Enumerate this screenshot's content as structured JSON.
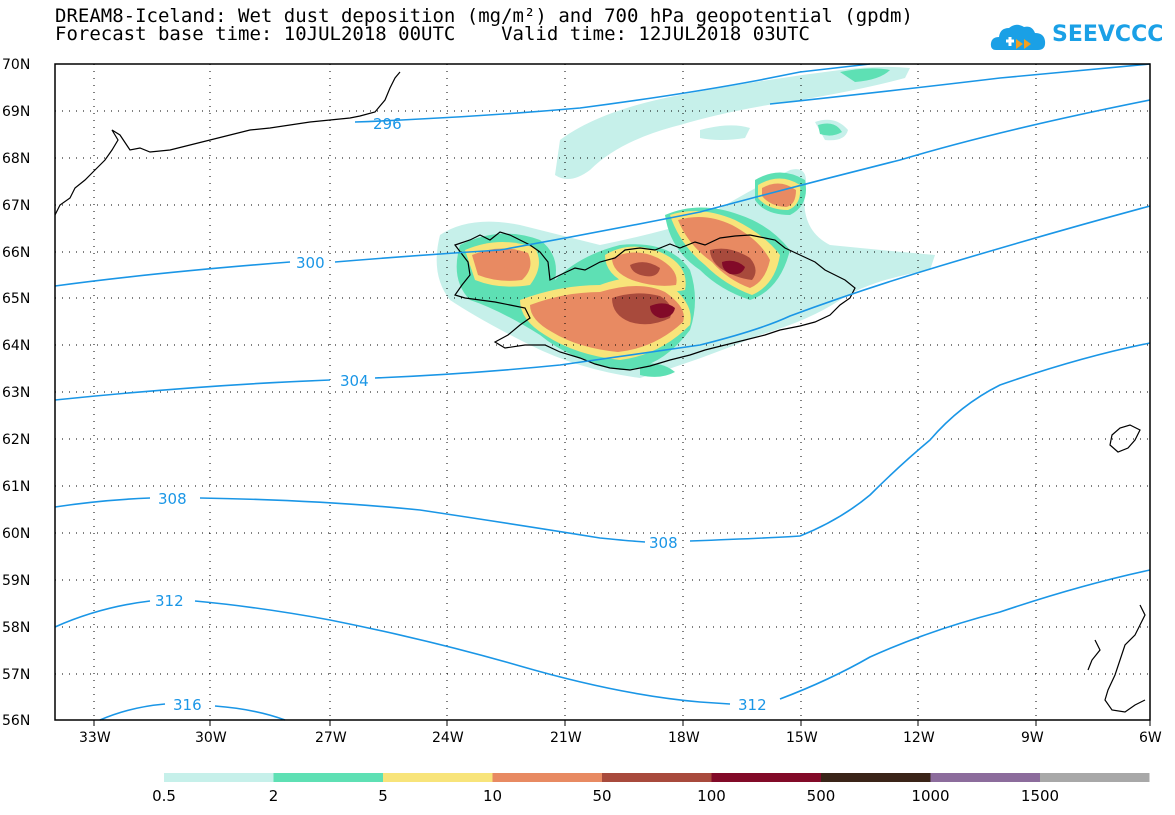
{
  "title": {
    "line1": "DREAM8-Iceland: Wet dust deposition (mg/m²) and 700 hPa geopotential (gpdm)",
    "line2": "Forecast base time: 10JUL2018 00UTC    Valid time: 12JUL2018 03UTC"
  },
  "logo": {
    "text": "SEEVCCC",
    "icon": "cloud-logo-icon",
    "color": "#1aa0e6"
  },
  "map": {
    "lat_range": [
      56,
      70
    ],
    "lon_range": [
      -34.3,
      -6
    ],
    "lat_ticks": [
      "56N",
      "57N",
      "58N",
      "59N",
      "60N",
      "61N",
      "62N",
      "63N",
      "64N",
      "65N",
      "66N",
      "67N",
      "68N",
      "69N",
      "70N"
    ],
    "lon_ticks": [
      "33W",
      "30W",
      "27W",
      "24W",
      "21W",
      "18W",
      "15W",
      "12W",
      "9W",
      "6W"
    ],
    "grid": "dotted",
    "contour_color": "#1a96e6",
    "contour_labels": [
      "296",
      "300",
      "304",
      "308",
      "308",
      "312",
      "312",
      "316"
    ]
  },
  "colorbar": {
    "labels": [
      "0.5",
      "2",
      "5",
      "10",
      "50",
      "100",
      "500",
      "1000",
      "1500"
    ],
    "colors": [
      "#c6f0ea",
      "#5ee0b4",
      "#f8e47a",
      "#e88a62",
      "#a84a3c",
      "#820a28",
      "#3a2418",
      "#8c6c9c",
      "#a8a8a8"
    ]
  }
}
